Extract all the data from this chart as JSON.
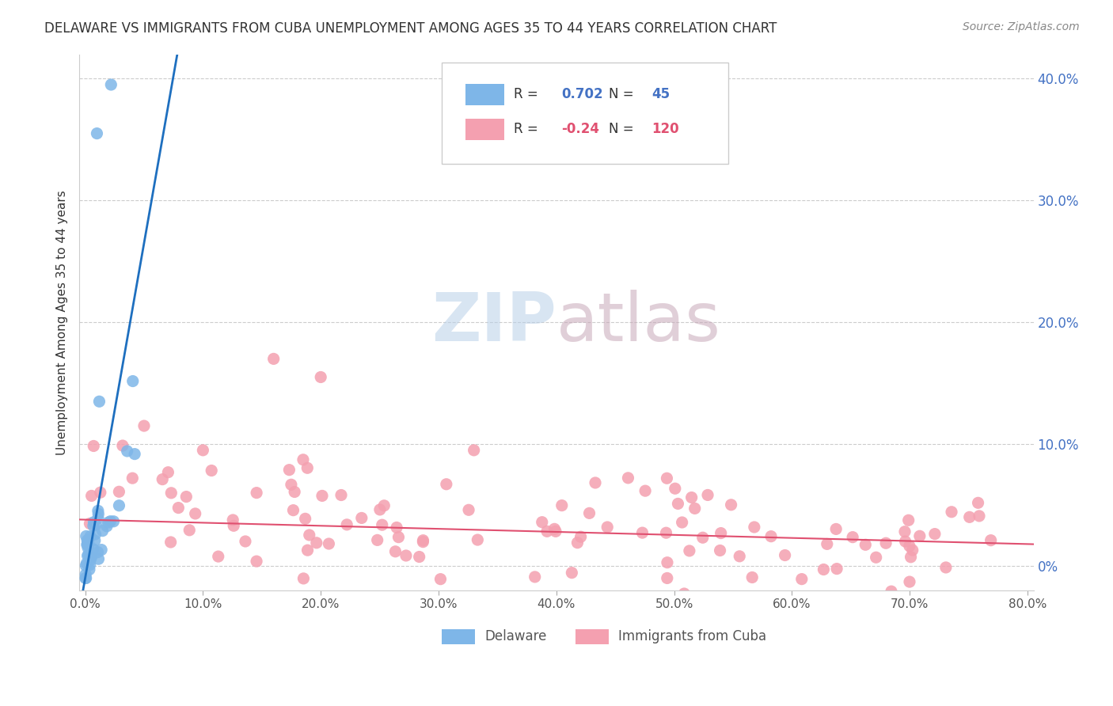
{
  "title": "DELAWARE VS IMMIGRANTS FROM CUBA UNEMPLOYMENT AMONG AGES 35 TO 44 YEARS CORRELATION CHART",
  "source": "Source: ZipAtlas.com",
  "ylabel": "Unemployment Among Ages 35 to 44 years",
  "xlabel": "",
  "xlim": [
    0.0,
    0.8
  ],
  "ylim": [
    -0.02,
    0.42
  ],
  "xticks": [
    0.0,
    0.1,
    0.2,
    0.3,
    0.4,
    0.5,
    0.6,
    0.7,
    0.8
  ],
  "yticks_right": [
    0.0,
    0.1,
    0.2,
    0.3,
    0.4
  ],
  "ytick_labels_right": [
    "0%",
    "10.0%",
    "20.0%",
    "30.0%",
    "40.0%"
  ],
  "xtick_labels": [
    "0.0%",
    "10.0%",
    "20.0%",
    "30.0%",
    "40.0%",
    "50.0%",
    "60.0%",
    "70.0%",
    "80.0%"
  ],
  "delaware_R": 0.702,
  "delaware_N": 45,
  "cuba_R": -0.24,
  "cuba_N": 120,
  "delaware_color": "#7EB6E8",
  "cuba_color": "#F4A0B0",
  "delaware_line_color": "#1E6FBF",
  "cuba_line_color": "#E05070",
  "watermark_zip": "ZIP",
  "watermark_atlas": "atlas",
  "background_color": "#FFFFFF",
  "grid_color": "#CCCCCC",
  "title_color": "#333333",
  "axis_label_color": "#333333",
  "right_tick_color": "#4472C4",
  "legend_r1_color": "#4472C4",
  "legend_r2_color": "#E05070"
}
